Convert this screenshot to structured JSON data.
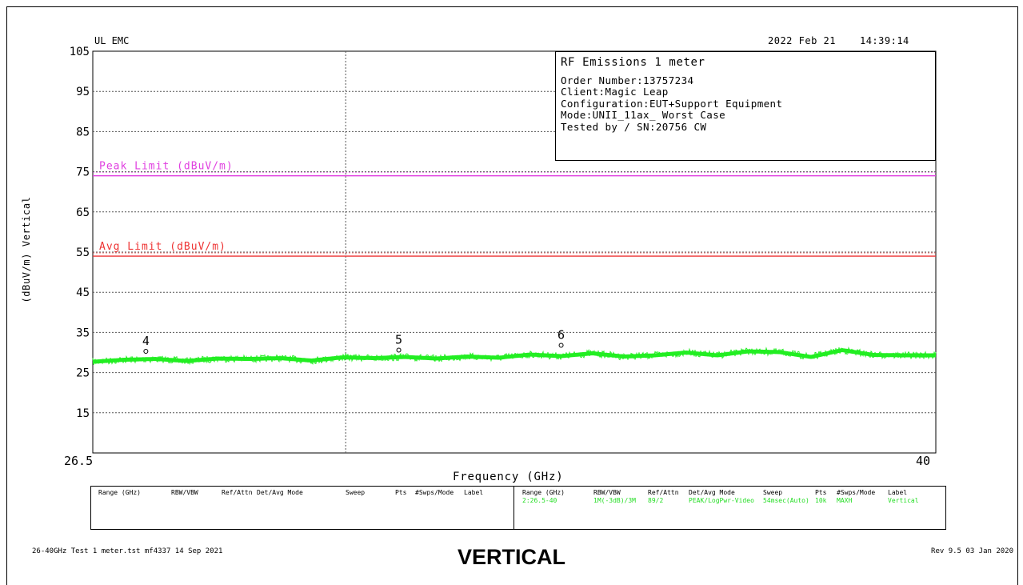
{
  "chart_data": {
    "type": "line",
    "title": "RF Emissions 1 meter",
    "xlabel": "Frequency (GHz)",
    "ylabel": "(dBuV/m) Vertical",
    "xlim": [
      26.5,
      40
    ],
    "ylim": [
      5,
      105
    ],
    "y_ticks": [
      "105",
      "95",
      "85",
      "75",
      "65",
      "55",
      "45",
      "35",
      "25",
      "15"
    ],
    "x_ticks": [
      "26.5",
      "40"
    ],
    "grid": true,
    "limits": [
      {
        "name": "Peak Limit (dBuV/m)",
        "value": 74,
        "color": "#e040e0"
      },
      {
        "name": "Avg Limit (dBuV/m)",
        "value": 54,
        "color": "#ee3333"
      }
    ],
    "series": [
      {
        "name": "Vertical",
        "color": "#22ee22",
        "x": [
          26.5,
          27.0,
          27.5,
          28.0,
          28.5,
          29.0,
          29.5,
          30.0,
          30.5,
          31.0,
          31.5,
          32.0,
          32.5,
          33.0,
          33.5,
          34.0,
          34.5,
          35.0,
          35.5,
          36.0,
          36.5,
          37.0,
          37.5,
          38.0,
          38.5,
          39.0,
          39.5,
          40.0
        ],
        "y": [
          27.7,
          28.2,
          28.4,
          27.9,
          28.5,
          28.4,
          28.6,
          28.0,
          28.8,
          28.6,
          28.9,
          28.5,
          29.0,
          28.7,
          29.5,
          29.1,
          29.8,
          29.0,
          29.3,
          30.0,
          29.3,
          30.3,
          30.1,
          28.9,
          30.6,
          29.4,
          29.3,
          29.3
        ]
      }
    ],
    "markers": [
      {
        "label": "4",
        "x": 27.35,
        "y": 29.5
      },
      {
        "label": "5",
        "x": 31.4,
        "y": 29.8
      },
      {
        "label": "6",
        "x": 34.0,
        "y": 31.0
      }
    ]
  },
  "header": {
    "lab": "UL EMC",
    "date": "2022 Feb 21",
    "time": "14:39:14"
  },
  "infobox": {
    "title": "RF Emissions 1 meter",
    "lines": [
      "Order Number:13757234",
      "Client:Magic Leap",
      "Configuration:EUT+Support Equipment",
      "Mode:UNII_11ax_ Worst Case",
      "Tested by / SN:20756 CW"
    ]
  },
  "legend_table": {
    "headers": [
      "Range (GHz)",
      "RBW/VBW",
      "Ref/Attn",
      "Det/Avg Mode",
      "Sweep",
      "Pts",
      "#Swps/Mode",
      "Label"
    ],
    "row": [
      "2:26.5-40",
      "1M(-3dB)/3M",
      "89/2",
      "PEAK/LogPwr-Video",
      "54msec(Auto)",
      "10k",
      "MAXH",
      "Vertical"
    ]
  },
  "footer": {
    "left": "26-40GHz Test 1 meter.tst mf4337 14 Sep 2021",
    "right": "Rev 9.5 03 Jan 2020"
  },
  "caption": "VERTICAL"
}
